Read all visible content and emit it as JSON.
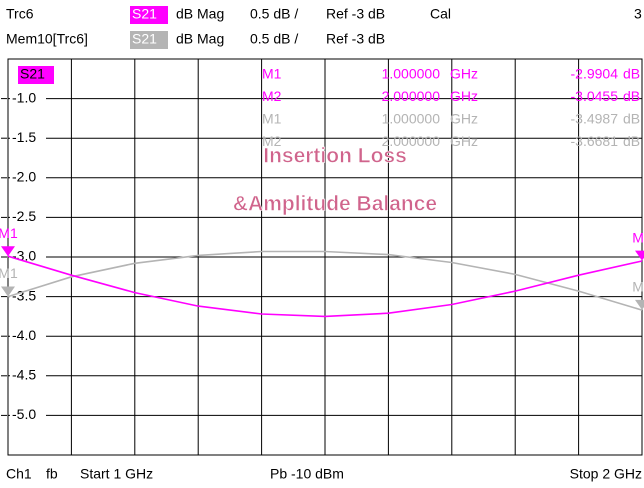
{
  "header": {
    "rows": [
      {
        "trace": "Trc6",
        "param": "S21",
        "format": "dB Mag",
        "scale": "0.5 dB /",
        "ref": "Ref -3 dB",
        "status": "Cal",
        "extra": "3"
      },
      {
        "trace": "Mem10[Trc6]",
        "param": "S21",
        "format": "dB Mag",
        "scale": "0.5 dB /",
        "ref": "Ref -3 dB"
      }
    ]
  },
  "chart_data": {
    "type": "line",
    "trace_label": "S21",
    "annotations": [
      "Insertion Loss",
      "&Amplitude Balance"
    ],
    "x": [
      1,
      1.1,
      1.2,
      1.3,
      1.4,
      1.5,
      1.6,
      1.7,
      1.8,
      1.9,
      2
    ],
    "xlim": [
      1,
      2
    ],
    "xticks": [
      1,
      1.1,
      1.2,
      1.3,
      1.4,
      1.5,
      1.6,
      1.7,
      1.8,
      1.9,
      2
    ],
    "ylim": [
      -5.5,
      -0.5
    ],
    "yticks": [
      {
        "value": -1,
        "label": "-1.0"
      },
      {
        "value": -1.5,
        "label": "-1.5"
      },
      {
        "value": -2,
        "label": "-2.0"
      },
      {
        "value": -2.5,
        "label": "-2.5"
      },
      {
        "value": -3,
        "label": "-3.0"
      },
      {
        "value": -3.5,
        "label": "-3.5"
      },
      {
        "value": -4,
        "label": "-4.0"
      },
      {
        "value": -4.5,
        "label": "-4.5"
      },
      {
        "value": -5,
        "label": "-5.0"
      }
    ],
    "grid": true,
    "series": [
      {
        "color": "#ff00ff",
        "values": [
          -2.99,
          -3.23,
          -3.45,
          -3.62,
          -3.72,
          -3.75,
          -3.71,
          -3.6,
          -3.43,
          -3.23,
          -3.05
        ],
        "markers": [
          {
            "name": "M1",
            "freq": {
              "value": 1,
              "label": "1.000000"
            },
            "unit": "GHz",
            "value": -2.9904,
            "value_unit": "dB"
          },
          {
            "name": "M2",
            "freq": {
              "value": 2,
              "label": "2.000000"
            },
            "unit": "GHz",
            "value": -3.0455,
            "value_unit": "dB"
          }
        ]
      },
      {
        "color": "#b4b4b4",
        "values": [
          -3.5,
          -3.25,
          -3.08,
          -2.98,
          -2.93,
          -2.93,
          -2.97,
          -3.07,
          -3.22,
          -3.43,
          -3.67
        ],
        "markers": [
          {
            "name": "M1",
            "freq": {
              "value": 1,
              "label": "1.000000"
            },
            "unit": "GHz",
            "value": -3.4987,
            "value_unit": "dB"
          },
          {
            "name": "M2",
            "freq": {
              "value": 2,
              "label": "2.000000"
            },
            "unit": "GHz",
            "value": -3.6681,
            "value_unit": "dB"
          }
        ]
      }
    ]
  },
  "footer": {
    "channel": "Ch1",
    "mode": "fb",
    "start": "Start 1 GHz",
    "power": "Pb -10 dBm",
    "stop": "Stop 2 GHz"
  }
}
